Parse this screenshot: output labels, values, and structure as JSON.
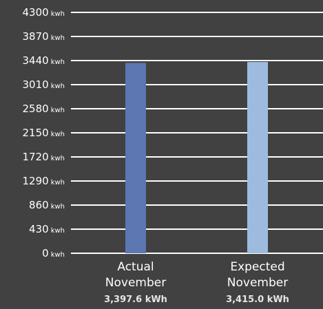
{
  "chart_data": {
    "type": "bar",
    "title": "",
    "xlabel": "",
    "ylabel": "",
    "ylim": [
      0,
      4300
    ],
    "y_unit": "kwh",
    "y_ticks": [
      "4300",
      "3870",
      "3440",
      "3010",
      "2580",
      "2150",
      "1720",
      "1290",
      "860",
      "430",
      "0"
    ],
    "grid": true,
    "legend": "none",
    "categories": [
      {
        "line1": "Actual",
        "line2": "November",
        "value_label": "3,397.6 kWh"
      },
      {
        "line1": "Expected",
        "line2": "November",
        "value_label": "3,415.0 kWh"
      }
    ],
    "values": [
      3397.6,
      3415.0
    ],
    "colors": {
      "background": "#414141",
      "grid": "#ffffff",
      "bars": [
        "#5c77b1",
        "#9dbbdf"
      ],
      "text": "#ffffff"
    }
  }
}
